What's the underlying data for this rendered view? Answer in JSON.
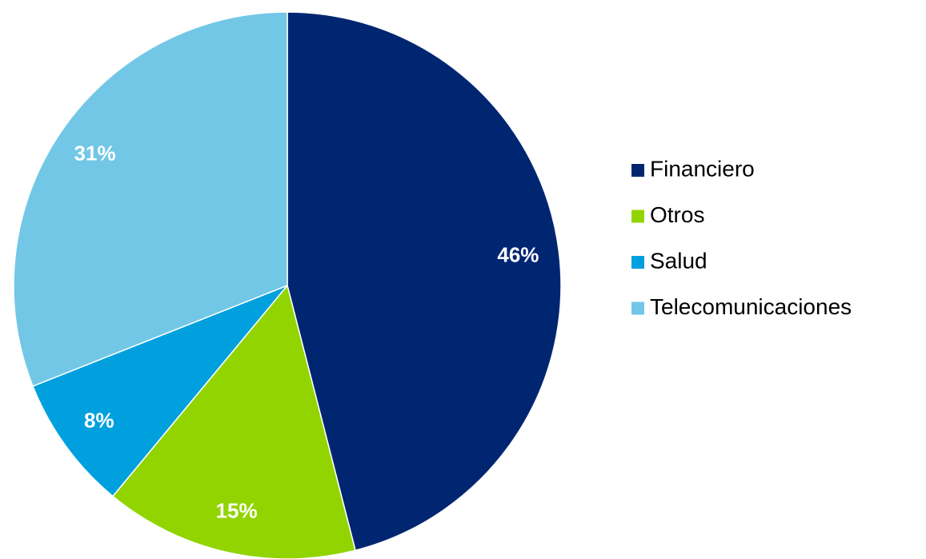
{
  "chart_data": {
    "type": "pie",
    "categories": [
      "Financiero",
      "Otros",
      "Salud",
      "Telecomunicaciones"
    ],
    "values": [
      46,
      15,
      8,
      31
    ],
    "value_labels": [
      "46%",
      "15%",
      "8%",
      "31%"
    ],
    "colors": [
      "#002672",
      "#92d400",
      "#00a0df",
      "#72c7e7"
    ],
    "legend": "right"
  }
}
